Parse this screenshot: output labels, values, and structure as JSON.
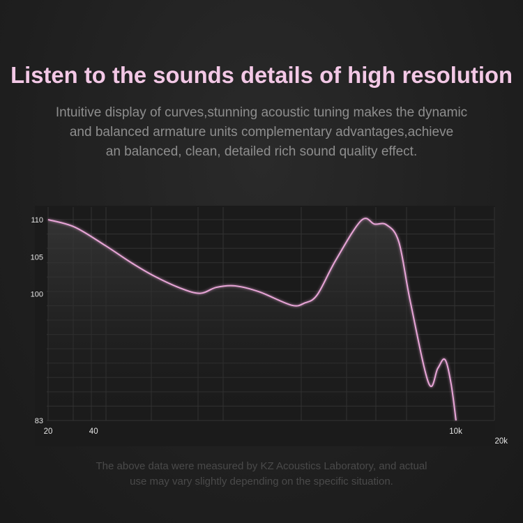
{
  "header": {
    "title": "Listen to the sounds details of high resolution",
    "subtitle_lines": [
      "Intuitive display of curves,stunning acoustic tuning makes the dynamic",
      "and balanced armature units complementary advantages,achieve",
      "an balanced, clean, detailed rich sound quality effect."
    ]
  },
  "chart_data": {
    "type": "line",
    "title": "",
    "xlabel": "",
    "ylabel": "",
    "x_scale": "log",
    "xlim": [
      20,
      20000
    ],
    "ylim": [
      83,
      110
    ],
    "grid": true,
    "x_ticks": [
      {
        "value": 20,
        "label": "20"
      },
      {
        "value": 40,
        "label": "40"
      },
      {
        "value": 10000,
        "label": "10k"
      },
      {
        "value": 20000,
        "label": "20k"
      }
    ],
    "y_ticks": [
      {
        "value": 110,
        "label": "110"
      },
      {
        "value": 105,
        "label": "105"
      },
      {
        "value": 100,
        "label": "100"
      },
      {
        "value": 83,
        "label": "83"
      }
    ],
    "series": [
      {
        "color": "#e9a6d8",
        "x": [
          20,
          30,
          48,
          70,
          99,
          150,
          203,
          260,
          346,
          500,
          818,
          1000,
          1210,
          1600,
          2370,
          2900,
          3480,
          4200,
          5000,
          6620,
          7600,
          8480,
          9300,
          10040
        ],
        "y": [
          110,
          109,
          106.5,
          104.3,
          102.5,
          100.8,
          100.1,
          100.9,
          101.1,
          100.3,
          98.5,
          98.8,
          99.9,
          104.5,
          109.9,
          109.4,
          109.3,
          107,
          99,
          88,
          90,
          91.2,
          88,
          83
        ]
      }
    ]
  },
  "footer": {
    "lines": [
      "The above data were measured by KZ Acoustics Laboratory, and actual",
      "use may vary slightly depending on the specific situation."
    ]
  }
}
